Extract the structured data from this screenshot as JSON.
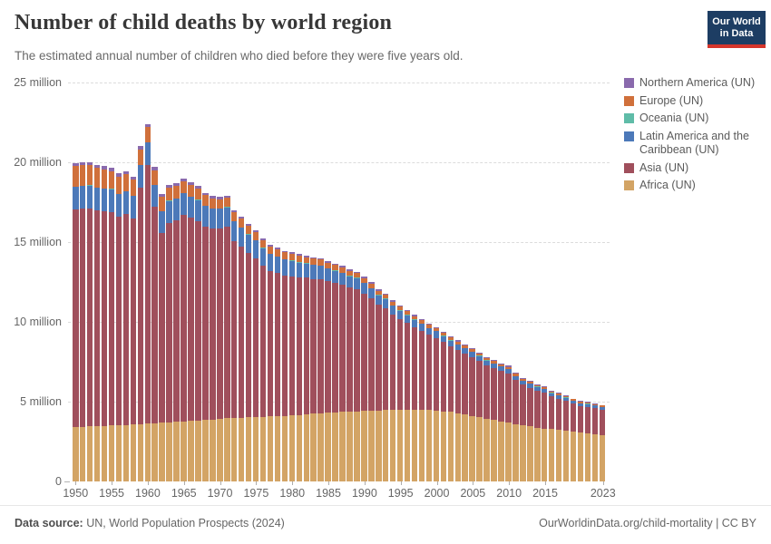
{
  "header": {
    "title": "Number of child deaths by world region",
    "subtitle": "The estimated annual number of children who died before they were five years old."
  },
  "logo": {
    "line1": "Our World",
    "line2": "in Data",
    "bg_color": "#1d3d63",
    "accent_color": "#d5352b"
  },
  "chart_data": {
    "type": "bar",
    "stacked": true,
    "title": "Number of child deaths by world region",
    "xlabel": "",
    "ylabel": "",
    "unit": "deaths (millions)",
    "ylim_millions": [
      0,
      25
    ],
    "grid": true,
    "legend_position": "right",
    "years": [
      1950,
      1951,
      1952,
      1953,
      1954,
      1955,
      1956,
      1957,
      1958,
      1959,
      1960,
      1961,
      1962,
      1963,
      1964,
      1965,
      1966,
      1967,
      1968,
      1969,
      1970,
      1971,
      1972,
      1973,
      1974,
      1975,
      1976,
      1977,
      1978,
      1979,
      1980,
      1981,
      1982,
      1983,
      1984,
      1985,
      1986,
      1987,
      1988,
      1989,
      1990,
      1991,
      1992,
      1993,
      1994,
      1995,
      1996,
      1997,
      1998,
      1999,
      2000,
      2001,
      2002,
      2003,
      2004,
      2005,
      2006,
      2007,
      2008,
      2009,
      2010,
      2011,
      2012,
      2013,
      2014,
      2015,
      2016,
      2017,
      2018,
      2019,
      2020,
      2021,
      2022,
      2023
    ],
    "x_ticks": [
      1950,
      1955,
      1960,
      1965,
      1970,
      1975,
      1980,
      1985,
      1990,
      1995,
      2000,
      2005,
      2010,
      2015,
      2023
    ],
    "y_ticks": [
      {
        "value": 0,
        "label": "0"
      },
      {
        "value": 5,
        "label": "5 million"
      },
      {
        "value": 10,
        "label": "10 million"
      },
      {
        "value": 15,
        "label": "15 million"
      },
      {
        "value": 20,
        "label": "20 million"
      },
      {
        "value": 25,
        "label": "25 million"
      }
    ],
    "series": [
      {
        "name": "Africa (UN)",
        "color": "#d3a465",
        "values_millions": [
          3.4,
          3.42,
          3.44,
          3.46,
          3.48,
          3.5,
          3.52,
          3.54,
          3.57,
          3.6,
          3.62,
          3.65,
          3.68,
          3.71,
          3.74,
          3.77,
          3.8,
          3.83,
          3.86,
          3.89,
          3.92,
          3.95,
          3.98,
          4.0,
          4.02,
          4.04,
          4.06,
          4.08,
          4.1,
          4.12,
          4.14,
          4.17,
          4.2,
          4.24,
          4.28,
          4.31,
          4.33,
          4.35,
          4.38,
          4.4,
          4.42,
          4.44,
          4.46,
          4.47,
          4.48,
          4.49,
          4.5,
          4.5,
          4.49,
          4.47,
          4.44,
          4.4,
          4.35,
          4.29,
          4.21,
          4.12,
          4.03,
          3.94,
          3.85,
          3.76,
          3.67,
          3.59,
          3.51,
          3.44,
          3.38,
          3.32,
          3.27,
          3.22,
          3.17,
          3.12,
          3.07,
          3.03,
          2.97,
          2.9
        ]
      },
      {
        "name": "Asia (UN)",
        "color": "#a04f5c",
        "values_millions": [
          13.64,
          13.68,
          13.67,
          13.52,
          13.44,
          13.37,
          13.05,
          13.22,
          12.89,
          14.8,
          16.21,
          13.54,
          11.87,
          12.49,
          12.62,
          12.94,
          12.72,
          12.5,
          12.12,
          11.95,
          11.92,
          11.99,
          11.1,
          10.74,
          10.32,
          9.95,
          9.48,
          9.12,
          8.96,
          8.8,
          8.72,
          8.63,
          8.56,
          8.46,
          8.41,
          8.22,
          8.09,
          7.96,
          7.78,
          7.65,
          7.37,
          7.05,
          6.62,
          6.4,
          5.98,
          5.7,
          5.43,
          5.16,
          4.95,
          4.71,
          4.56,
          4.33,
          4.11,
          3.94,
          3.8,
          3.67,
          3.53,
          3.34,
          3.25,
          3.16,
          3.11,
          2.76,
          2.55,
          2.44,
          2.32,
          2.25,
          2.06,
          1.97,
          1.88,
          1.74,
          1.64,
          1.65,
          1.62,
          1.59
        ]
      },
      {
        "name": "Latin America and the Caribbean (UN)",
        "color": "#4c79b9",
        "values_millions": [
          1.4,
          1.41,
          1.42,
          1.43,
          1.43,
          1.43,
          1.43,
          1.42,
          1.42,
          1.41,
          1.4,
          1.39,
          1.38,
          1.37,
          1.35,
          1.34,
          1.32,
          1.3,
          1.28,
          1.26,
          1.24,
          1.22,
          1.2,
          1.17,
          1.14,
          1.11,
          1.08,
          1.05,
          1.01,
          0.98,
          0.95,
          0.92,
          0.89,
          0.86,
          0.83,
          0.8,
          0.77,
          0.74,
          0.71,
          0.68,
          0.65,
          0.62,
          0.59,
          0.57,
          0.54,
          0.52,
          0.49,
          0.47,
          0.45,
          0.43,
          0.41,
          0.39,
          0.37,
          0.35,
          0.33,
          0.32,
          0.3,
          0.29,
          0.28,
          0.27,
          0.26,
          0.25,
          0.24,
          0.23,
          0.22,
          0.21,
          0.2,
          0.19,
          0.19,
          0.18,
          0.18,
          0.17,
          0.16,
          0.16
        ]
      },
      {
        "name": "Oceania (UN)",
        "color": "#5fbca8",
        "values_millions": [
          0.03,
          0.03,
          0.03,
          0.03,
          0.03,
          0.03,
          0.03,
          0.03,
          0.03,
          0.03,
          0.03,
          0.03,
          0.03,
          0.03,
          0.03,
          0.03,
          0.03,
          0.03,
          0.03,
          0.03,
          0.03,
          0.03,
          0.03,
          0.03,
          0.03,
          0.03,
          0.03,
          0.03,
          0.03,
          0.03,
          0.03,
          0.03,
          0.03,
          0.03,
          0.03,
          0.03,
          0.03,
          0.03,
          0.03,
          0.03,
          0.02,
          0.02,
          0.02,
          0.02,
          0.02,
          0.02,
          0.02,
          0.02,
          0.02,
          0.02,
          0.02,
          0.02,
          0.02,
          0.02,
          0.02,
          0.02,
          0.02,
          0.02,
          0.02,
          0.02,
          0.02,
          0.02,
          0.02,
          0.02,
          0.02,
          0.02,
          0.02,
          0.02,
          0.02,
          0.02,
          0.02,
          0.02,
          0.02,
          0.02
        ]
      },
      {
        "name": "Europe (UN)",
        "color": "#d0703b",
        "values_millions": [
          1.3,
          1.28,
          1.26,
          1.22,
          1.18,
          1.13,
          1.08,
          1.05,
          1.0,
          0.97,
          0.95,
          0.9,
          0.86,
          0.82,
          0.78,
          0.75,
          0.71,
          0.68,
          0.65,
          0.62,
          0.59,
          0.57,
          0.55,
          0.53,
          0.51,
          0.5,
          0.48,
          0.46,
          0.44,
          0.42,
          0.41,
          0.4,
          0.38,
          0.37,
          0.36,
          0.35,
          0.34,
          0.33,
          0.31,
          0.3,
          0.29,
          0.28,
          0.27,
          0.25,
          0.24,
          0.23,
          0.22,
          0.21,
          0.2,
          0.19,
          0.19,
          0.18,
          0.17,
          0.17,
          0.16,
          0.15,
          0.15,
          0.14,
          0.14,
          0.13,
          0.13,
          0.12,
          0.12,
          0.11,
          0.11,
          0.1,
          0.1,
          0.1,
          0.09,
          0.09,
          0.09,
          0.08,
          0.08,
          0.08
        ]
      },
      {
        "name": "Northern America (UN)",
        "color": "#8a6aad",
        "values_millions": [
          0.18,
          0.18,
          0.18,
          0.19,
          0.19,
          0.19,
          0.19,
          0.19,
          0.19,
          0.19,
          0.19,
          0.19,
          0.18,
          0.18,
          0.18,
          0.17,
          0.17,
          0.16,
          0.16,
          0.15,
          0.15,
          0.14,
          0.14,
          0.13,
          0.13,
          0.12,
          0.12,
          0.11,
          0.11,
          0.1,
          0.1,
          0.1,
          0.09,
          0.09,
          0.09,
          0.09,
          0.09,
          0.09,
          0.09,
          0.09,
          0.09,
          0.08,
          0.08,
          0.08,
          0.08,
          0.08,
          0.08,
          0.08,
          0.08,
          0.07,
          0.07,
          0.07,
          0.07,
          0.07,
          0.07,
          0.07,
          0.07,
          0.07,
          0.06,
          0.06,
          0.06,
          0.06,
          0.06,
          0.06,
          0.05,
          0.05,
          0.05,
          0.05,
          0.05,
          0.05,
          0.05,
          0.05,
          0.05,
          0.05
        ]
      }
    ]
  },
  "footer": {
    "source_label": "Data source:",
    "source_text": " UN, World Population Prospects (2024)",
    "link_text": "OurWorldinData.org/child-mortality | CC BY"
  }
}
